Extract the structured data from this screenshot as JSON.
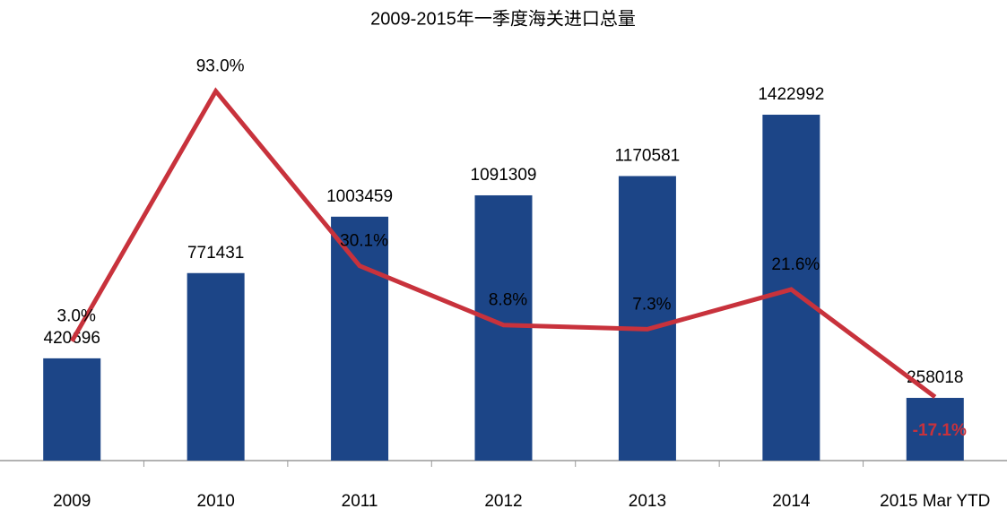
{
  "chart_data": {
    "type": "bar-line",
    "title": "2009-2015年一季度海关进口总量",
    "categories": [
      "2009",
      "2010",
      "2011",
      "2012",
      "2013",
      "2014",
      "2015 Mar YTD"
    ],
    "ylim": [
      0,
      1600000
    ],
    "y2lim": [
      -40,
      100
    ],
    "series": [
      {
        "type": "bar",
        "color": "#1c4587",
        "values": [
          420696,
          771431,
          1003459,
          1091309,
          1170581,
          1422992,
          258018
        ]
      },
      {
        "type": "line",
        "axis": "y2",
        "color": "#c8323c",
        "values": [
          3.0,
          93.0,
          30.1,
          8.8,
          7.3,
          21.6,
          -17.1
        ],
        "value_labels": [
          "3.0%",
          "93.0%",
          "30.1%",
          "8.8%",
          "7.3%",
          "21.6%",
          "-17.1%"
        ]
      }
    ]
  }
}
